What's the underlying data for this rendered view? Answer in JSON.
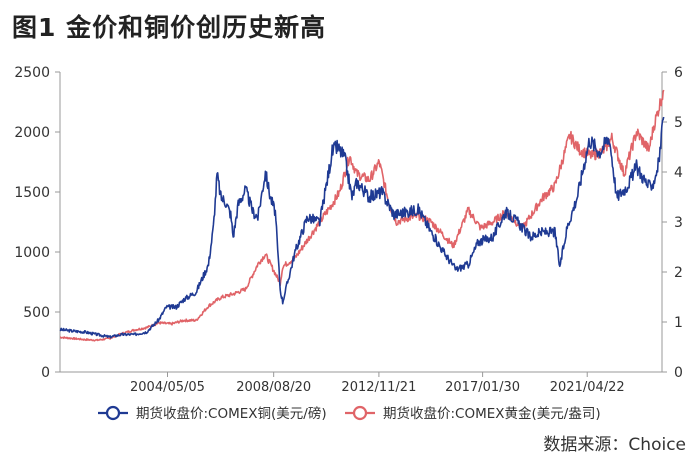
{
  "chart_data": {
    "type": "line",
    "title": "图1  金价和铜价创历史新高",
    "source": "数据来源：Choice",
    "x_ticks": [
      "2004/05/05",
      "2008/08/20",
      "2012/11/21",
      "2017/01/30",
      "2021/04/22"
    ],
    "x_range": [
      "2000/01/01",
      "2024/04/30"
    ],
    "y_left": {
      "range": [
        0,
        2500
      ],
      "ticks": [
        0,
        500,
        1000,
        1500,
        2000,
        2500
      ]
    },
    "y_right": {
      "range": [
        0,
        6
      ],
      "ticks": [
        0,
        1,
        2,
        3,
        4,
        5,
        6
      ]
    },
    "legend_position": "bottom",
    "series": [
      {
        "name": "期货收盘价:COMEX铜(美元/磅)",
        "axis": "right",
        "color": "#1f3a93",
        "x": [
          2000.0,
          2000.5,
          2001.0,
          2001.5,
          2002.0,
          2002.5,
          2003.0,
          2003.5,
          2004.0,
          2004.3,
          2004.7,
          2005.0,
          2005.5,
          2006.0,
          2006.2,
          2006.35,
          2006.5,
          2006.7,
          2006.9,
          2007.0,
          2007.2,
          2007.5,
          2007.8,
          2008.0,
          2008.3,
          2008.5,
          2008.7,
          2008.9,
          2009.0,
          2009.5,
          2010.0,
          2010.5,
          2011.0,
          2011.2,
          2011.5,
          2011.8,
          2012.0,
          2012.5,
          2013.0,
          2013.5,
          2014.0,
          2014.5,
          2015.0,
          2015.5,
          2016.0,
          2016.5,
          2016.9,
          2017.5,
          2018.0,
          2018.5,
          2019.0,
          2019.5,
          2020.0,
          2020.2,
          2020.5,
          2020.9,
          2021.2,
          2021.4,
          2021.8,
          2022.2,
          2022.5,
          2022.9,
          2023.3,
          2023.8,
          2024.0,
          2024.2,
          2024.4
        ],
        "values": [
          0.85,
          0.82,
          0.8,
          0.75,
          0.7,
          0.75,
          0.75,
          0.8,
          1.05,
          1.3,
          1.3,
          1.45,
          1.6,
          2.15,
          2.9,
          3.95,
          3.5,
          3.4,
          3.15,
          2.7,
          3.35,
          3.65,
          3.2,
          3.1,
          4.0,
          3.5,
          3.2,
          1.65,
          1.4,
          2.4,
          3.1,
          3.0,
          4.4,
          4.5,
          4.3,
          3.5,
          3.8,
          3.5,
          3.6,
          3.15,
          3.2,
          3.25,
          2.8,
          2.4,
          2.05,
          2.15,
          2.6,
          2.7,
          3.2,
          3.0,
          2.7,
          2.8,
          2.8,
          2.1,
          2.9,
          3.5,
          4.2,
          4.65,
          4.4,
          4.7,
          3.5,
          3.7,
          4.1,
          3.7,
          3.8,
          4.2,
          5.1
        ]
      },
      {
        "name": "期货收盘价:COMEX黄金(美元/盎司)",
        "axis": "left",
        "color": "#e06468",
        "x": [
          2000.0,
          2000.5,
          2001.0,
          2001.5,
          2002.0,
          2002.5,
          2003.0,
          2003.5,
          2004.0,
          2004.5,
          2005.0,
          2005.5,
          2006.0,
          2006.5,
          2007.0,
          2007.5,
          2008.0,
          2008.3,
          2008.9,
          2009.0,
          2009.5,
          2010.0,
          2010.5,
          2011.0,
          2011.3,
          2011.7,
          2012.0,
          2012.5,
          2012.9,
          2013.3,
          2013.6,
          2014.0,
          2014.5,
          2015.0,
          2015.9,
          2016.5,
          2017.0,
          2017.5,
          2018.0,
          2018.7,
          2019.5,
          2020.0,
          2020.6,
          2021.0,
          2021.5,
          2022.0,
          2022.3,
          2022.8,
          2023.3,
          2023.8,
          2024.0,
          2024.2,
          2024.4
        ],
        "values": [
          290,
          280,
          270,
          265,
          280,
          320,
          350,
          370,
          410,
          400,
          430,
          430,
          550,
          620,
          650,
          690,
          900,
          980,
          740,
          880,
          950,
          1100,
          1250,
          1400,
          1500,
          1800,
          1650,
          1600,
          1750,
          1400,
          1250,
          1280,
          1300,
          1250,
          1050,
          1350,
          1200,
          1250,
          1330,
          1200,
          1450,
          1550,
          1970,
          1850,
          1800,
          1850,
          1950,
          1650,
          2000,
          1850,
          2050,
          2200,
          2350
        ]
      }
    ]
  }
}
